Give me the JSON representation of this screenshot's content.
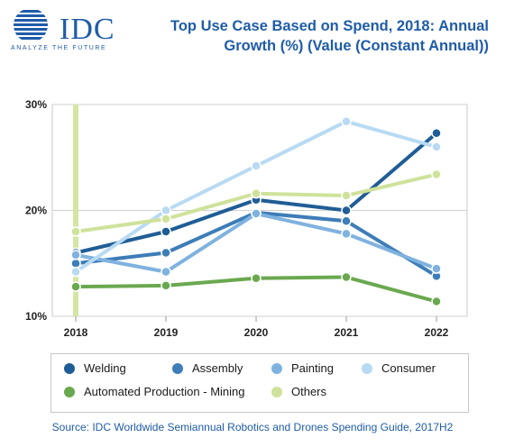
{
  "brand": {
    "name": "IDC",
    "tagline": "ANALYZE THE FUTURE"
  },
  "title_lines": [
    "Top Use Case Based on Spend, 2018: Annual",
    "Growth (%) (Value (Constant Annual))"
  ],
  "source": "Source: IDC Worldwide Semiannual Robotics and Drones Spending Guide, 2017H2",
  "chart_data": {
    "type": "line",
    "title": "Top Use Case Based on Spend, 2018: Annual Growth (%) (Value (Constant Annual))",
    "x": [
      "2018",
      "2019",
      "2020",
      "2021",
      "2022"
    ],
    "ylim": [
      10,
      30
    ],
    "yticks": [
      10,
      20,
      30
    ],
    "ytick_labels": [
      "10%",
      "20%",
      "30%"
    ],
    "grid": true,
    "legend_position": "bottom",
    "series": [
      {
        "name": "Welding",
        "color": "#1f5d96",
        "values": [
          16.0,
          18.0,
          21.0,
          20.0,
          27.3
        ]
      },
      {
        "name": "Assembly",
        "color": "#3d7db8",
        "values": [
          15.0,
          16.0,
          19.8,
          19.0,
          13.8
        ]
      },
      {
        "name": "Painting",
        "color": "#7fb2df",
        "values": [
          15.8,
          14.2,
          19.7,
          17.8,
          14.5
        ]
      },
      {
        "name": "Consumer",
        "color": "#b8daf3",
        "values": [
          14.2,
          20.0,
          24.2,
          28.4,
          26.0
        ]
      },
      {
        "name": "Automated Production - Mining",
        "color": "#6aa84f",
        "values": [
          12.8,
          12.9,
          13.6,
          13.7,
          11.4
        ]
      },
      {
        "name": "Others",
        "color": "#cfe29b",
        "values": [
          18.0,
          19.2,
          21.6,
          21.4,
          23.4
        ]
      }
    ]
  }
}
